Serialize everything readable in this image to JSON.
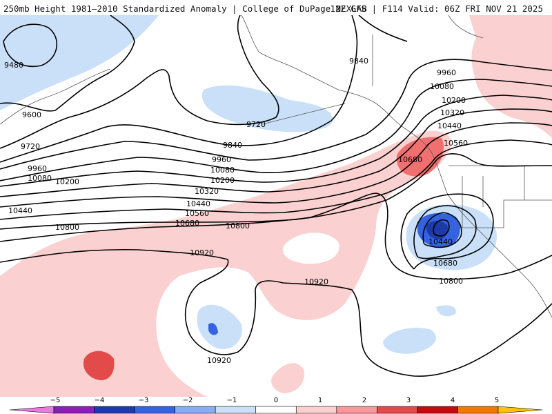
{
  "header": {
    "left_title": "250mb Height 1981–2010 Standardized Anomaly | College of DuPage NEXLAB",
    "right_title": "12Z GFS | F114 Valid: 06Z FRI NOV 21 2025"
  },
  "map": {
    "contour_labels": {
      "c9480": "9480",
      "c9600": "9600",
      "c9720a": "9720",
      "c9720b": "9720",
      "c9840a": "9840",
      "c9840b": "9840",
      "c9960a": "9960",
      "c9960b": "9960",
      "c9960c": "9960",
      "c10080a": "10080",
      "c10080b": "10080",
      "c10080c": "10080",
      "c10200a": "10200",
      "c10200b": "10200",
      "c10200c": "10200",
      "c10320a": "10320",
      "c10320b": "10320",
      "c10440a": "10440",
      "c10440b": "10440",
      "c10440c": "10440",
      "c10440d": "10440",
      "c10560a": "10560",
      "c10560b": "10560",
      "c10680a": "10680",
      "c10680b": "10680",
      "c10680c": "10680",
      "c10800a": "10800",
      "c10800b": "10800",
      "c10800c": "10800",
      "c10920a": "10920",
      "c10920b": "10920",
      "c10920c": "10920"
    }
  },
  "colorbar": {
    "ticks": [
      "−5",
      "−4",
      "−3",
      "−2",
      "−1",
      "0",
      "1",
      "2",
      "3",
      "4",
      "5"
    ],
    "colors": [
      "#e87be0",
      "#8b1fb5",
      "#1d3aa8",
      "#3563e0",
      "#86aef0",
      "#c9e0f8",
      "#ffffff",
      "#fbd0d0",
      "#f49a9a",
      "#e34a4a",
      "#c40a0a",
      "#f07a00",
      "#ffc300"
    ]
  }
}
